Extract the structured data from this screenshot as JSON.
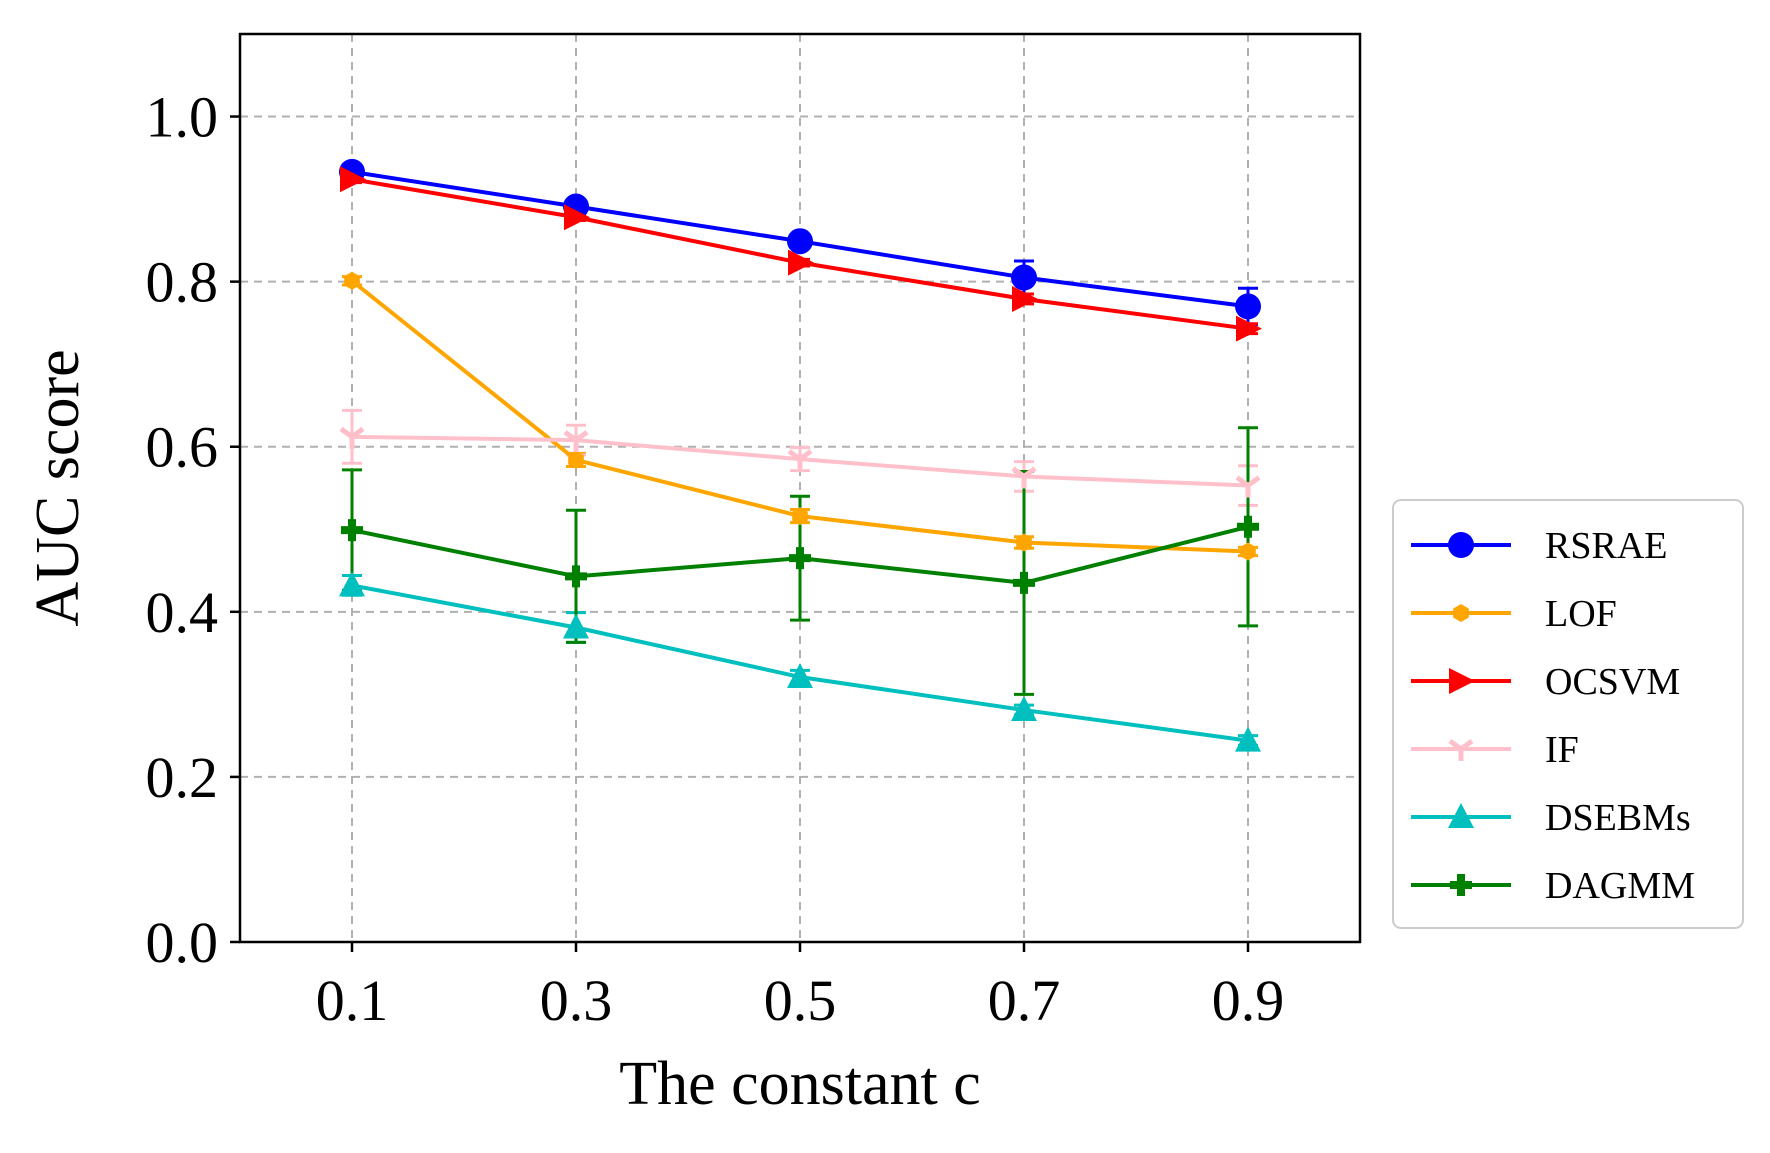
{
  "chart_data": {
    "type": "line",
    "title": "",
    "xlabel": "The constant c",
    "ylabel": "AUC score",
    "x": [
      0.1,
      0.3,
      0.5,
      0.7,
      0.9
    ],
    "x_tick_labels": [
      "0.1",
      "0.3",
      "0.5",
      "0.7",
      "0.9"
    ],
    "y_tick_labels": [
      "0.0",
      "0.2",
      "0.4",
      "0.6",
      "0.8",
      "1.0"
    ],
    "y_ticks": [
      0.0,
      0.2,
      0.4,
      0.6,
      0.8,
      1.0
    ],
    "xlim": [
      0.0,
      1.0
    ],
    "ylim": [
      0.0,
      1.1
    ],
    "grid": true,
    "legend_position": "outside-right-bottom",
    "series": [
      {
        "name": "RSRAE",
        "color": "#0000ff",
        "marker": "circle",
        "values": [
          0.933,
          0.891,
          0.849,
          0.805,
          0.77
        ],
        "errors": [
          0.005,
          0.005,
          0.006,
          0.02,
          0.022
        ]
      },
      {
        "name": "LOF",
        "color": "#ffa500",
        "marker": "hexagon",
        "values": [
          0.801,
          0.584,
          0.516,
          0.484,
          0.473
        ],
        "errors": [
          0.005,
          0.008,
          0.008,
          0.007,
          0.005
        ]
      },
      {
        "name": "OCSVM",
        "color": "#ff0000",
        "marker": "triangle-right",
        "values": [
          0.924,
          0.878,
          0.823,
          0.779,
          0.743
        ],
        "errors": [
          0.004,
          0.004,
          0.004,
          0.006,
          0.006
        ]
      },
      {
        "name": "IF",
        "color": "#ffc0cb",
        "marker": "tri-down",
        "values": [
          0.612,
          0.608,
          0.585,
          0.564,
          0.553
        ],
        "errors": [
          0.032,
          0.018,
          0.014,
          0.018,
          0.024
        ]
      },
      {
        "name": "DSEBMs",
        "color": "#00bfbf",
        "marker": "triangle-up",
        "values": [
          0.432,
          0.381,
          0.321,
          0.281,
          0.244
        ],
        "errors": [
          0.012,
          0.018,
          0.008,
          0.006,
          0.006
        ]
      },
      {
        "name": "DAGMM",
        "color": "#008000",
        "marker": "plus",
        "values": [
          0.499,
          0.443,
          0.465,
          0.435,
          0.503
        ],
        "errors": [
          0.073,
          0.08,
          0.075,
          0.135,
          0.12
        ]
      }
    ]
  }
}
